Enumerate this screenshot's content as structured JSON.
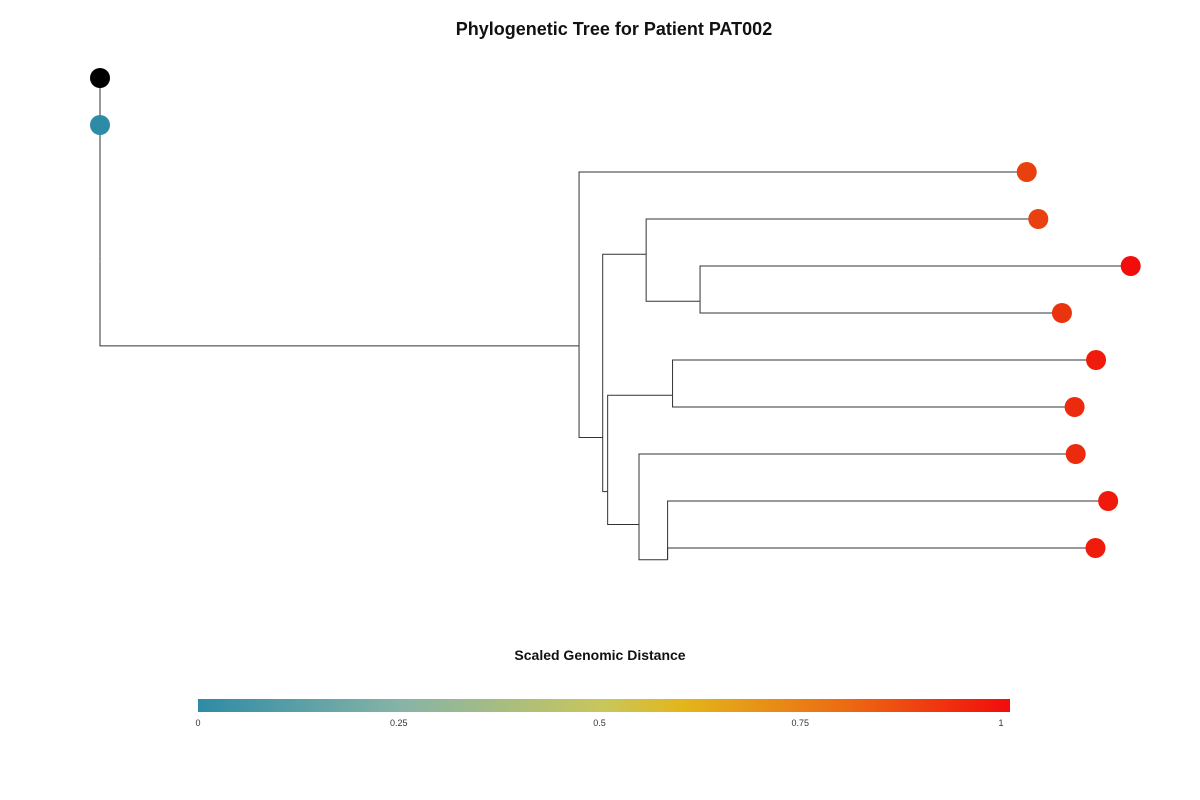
{
  "title": "Phylogenetic Tree for Patient PAT002",
  "legend": {
    "title": "Scaled Genomic Distance",
    "ticks": [
      {
        "value": 0,
        "label": "0"
      },
      {
        "value": 0.25,
        "label": "0.25"
      },
      {
        "value": 0.5,
        "label": "0.5"
      },
      {
        "value": 0.75,
        "label": "0.75"
      },
      {
        "value": 1,
        "label": "1"
      }
    ],
    "gradient_stops": [
      {
        "value": 0,
        "color": "#2e8ba6"
      },
      {
        "value": 0.25,
        "color": "#86b4a6"
      },
      {
        "value": 0.5,
        "color": "#c9c65a"
      },
      {
        "value": 0.6,
        "color": "#e3b51a"
      },
      {
        "value": 0.8,
        "color": "#ec6a12"
      },
      {
        "value": 1,
        "color": "#f20c0c"
      }
    ]
  },
  "tree": {
    "nodes": [
      {
        "id": "root",
        "depth": 0,
        "row": 0,
        "color": "#000000",
        "marker": true
      },
      {
        "id": "normal",
        "depth": 0,
        "row": 1,
        "color": "#2e8ba6",
        "marker": true
      },
      {
        "id": "n1",
        "depth": 0,
        "row": 3.9,
        "marker": false
      },
      {
        "id": "n2",
        "depth": 0.4355,
        "row": 5.7,
        "marker": false
      },
      {
        "id": "n3",
        "depth": 0.457,
        "row": 7.65,
        "marker": false
      },
      {
        "id": "n4",
        "depth": 0.4965,
        "row": 3.75,
        "marker": false
      },
      {
        "id": "n5",
        "depth": 0.5455,
        "row": 4.75,
        "marker": false
      },
      {
        "id": "n6",
        "depth": 0.4615,
        "row": 8.8,
        "marker": false
      },
      {
        "id": "n7",
        "depth": 0.5205,
        "row": 6.75,
        "marker": false
      },
      {
        "id": "n8",
        "depth": 0.49,
        "row": 9.5,
        "marker": false
      },
      {
        "id": "n9",
        "depth": 0.516,
        "row": 10.25,
        "marker": false
      },
      {
        "id": "t1",
        "depth": 0.8425,
        "row": 2,
        "color": "#e8400f",
        "marker": true
      },
      {
        "id": "t2",
        "depth": 0.853,
        "row": 3,
        "color": "#e8400f",
        "marker": true
      },
      {
        "id": "t3",
        "depth": 0.937,
        "row": 4,
        "color": "#f20c0c",
        "marker": true
      },
      {
        "id": "t4",
        "depth": 0.8745,
        "row": 5,
        "color": "#e9340f",
        "marker": true
      },
      {
        "id": "t5",
        "depth": 0.9055,
        "row": 6,
        "color": "#ef1c0d",
        "marker": true
      },
      {
        "id": "t6",
        "depth": 0.886,
        "row": 7,
        "color": "#ec2a0e",
        "marker": true
      },
      {
        "id": "t7",
        "depth": 0.887,
        "row": 8,
        "color": "#ec2a0e",
        "marker": true
      },
      {
        "id": "t8",
        "depth": 0.9165,
        "row": 9,
        "color": "#f01a0c",
        "marker": true
      },
      {
        "id": "t9",
        "depth": 0.905,
        "row": 10,
        "color": "#ef1c0d",
        "marker": true
      }
    ],
    "edges": [
      {
        "from": "root",
        "to": "normal"
      },
      {
        "from": "normal",
        "to": "n1"
      },
      {
        "from": "n1",
        "to": "n2"
      },
      {
        "from": "n2",
        "to": "t1"
      },
      {
        "from": "n2",
        "to": "n3"
      },
      {
        "from": "n3",
        "to": "n4"
      },
      {
        "from": "n3",
        "to": "n6"
      },
      {
        "from": "n4",
        "to": "t2"
      },
      {
        "from": "n4",
        "to": "n5"
      },
      {
        "from": "n5",
        "to": "t3"
      },
      {
        "from": "n5",
        "to": "t4"
      },
      {
        "from": "n6",
        "to": "n7"
      },
      {
        "from": "n6",
        "to": "n8"
      },
      {
        "from": "n7",
        "to": "t5"
      },
      {
        "from": "n7",
        "to": "t6"
      },
      {
        "from": "n8",
        "to": "t7"
      },
      {
        "from": "n8",
        "to": "n9"
      },
      {
        "from": "n9",
        "to": "t8"
      },
      {
        "from": "n9",
        "to": "t9"
      }
    ]
  }
}
